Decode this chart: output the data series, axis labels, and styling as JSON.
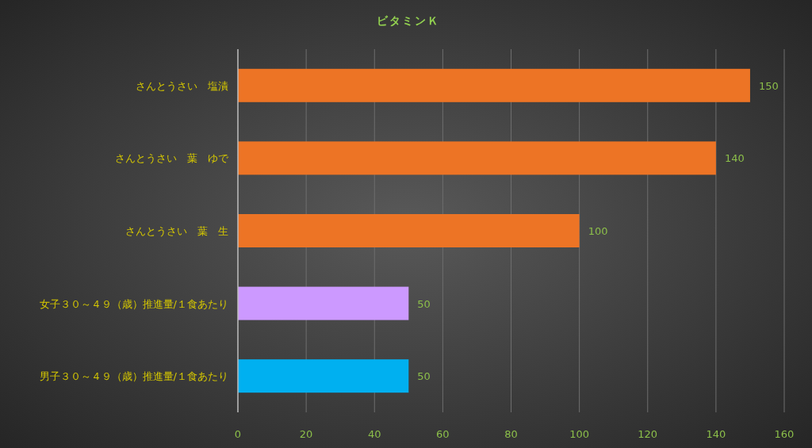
{
  "chart_data": {
    "type": "bar",
    "orientation": "horizontal",
    "title": "ビタミンＫ",
    "categories": [
      "さんとうさい　塩漬",
      "さんとうさい　葉　ゆで",
      "さんとうさい　葉　生",
      "女子３０～４９（歳）推進量/１食あたり",
      "男子３０～４９（歳）推進量/１食あたり"
    ],
    "values": [
      150,
      140,
      100,
      50,
      50
    ],
    "colors": [
      "#ed7425",
      "#ed7425",
      "#ed7425",
      "#cc99ff",
      "#00b0f0"
    ],
    "xlim": [
      0,
      160
    ],
    "xticks": [
      0,
      20,
      40,
      60,
      80,
      100,
      120,
      140,
      160
    ],
    "grid": "x",
    "data_labels": true
  }
}
